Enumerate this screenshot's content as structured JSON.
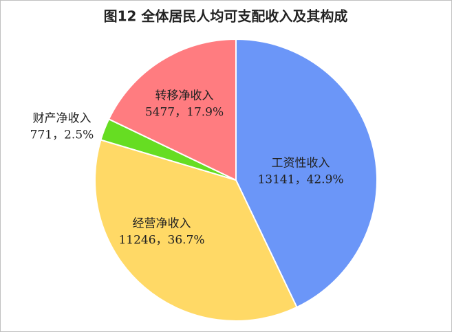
{
  "chart_data": {
    "type": "pie",
    "title": "图12  全体居民人均可支配收入及其构成",
    "categories": [
      "工资性收入",
      "经营净收入",
      "财产净收入",
      "转移净收入"
    ],
    "values": [
      13141,
      11246,
      771,
      5477
    ],
    "value_labels": [
      "13141，42.9%",
      "11246，36.7%",
      "771，2.5%",
      "5477，17.9%"
    ],
    "colors": [
      "#6b96f8",
      "#ffd966",
      "#66dd22",
      "#ff7c80"
    ]
  }
}
